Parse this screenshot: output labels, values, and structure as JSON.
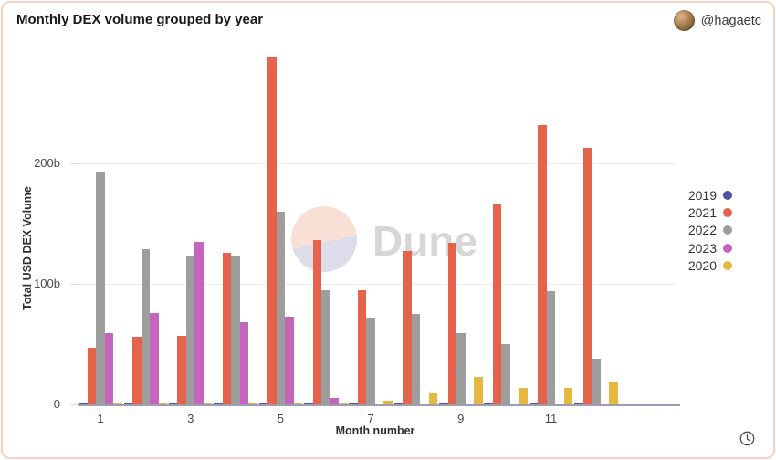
{
  "header": {
    "title": "Monthly DEX volume grouped by year",
    "author_handle": "@hagaetc"
  },
  "watermark": {
    "brand": "Dune"
  },
  "icons": {
    "avatar": "user-avatar",
    "clock": "clock-icon"
  },
  "chart_data": {
    "type": "bar",
    "title": "Monthly DEX volume grouped by year",
    "xlabel": "Month number",
    "ylabel": "Total USD DEX Volume",
    "unit": "billions of USD",
    "grid": true,
    "legend_position": "right",
    "ylim": [
      0,
      300
    ],
    "categories": [
      1,
      2,
      3,
      4,
      5,
      6,
      7,
      8,
      9,
      10,
      11,
      12
    ],
    "x_ticks": [
      1,
      3,
      5,
      7,
      9,
      11
    ],
    "y_ticks": [
      {
        "value": 0,
        "label": "0"
      },
      {
        "value": 100,
        "label": "100b"
      },
      {
        "value": 200,
        "label": "200b"
      }
    ],
    "series": [
      {
        "name": "2019",
        "color": "#4d54a5",
        "values": [
          1,
          1,
          1,
          1,
          1,
          1,
          1,
          1,
          1,
          1,
          1,
          1
        ]
      },
      {
        "name": "2021",
        "color": "#e5634a",
        "values": [
          47,
          56,
          57,
          126,
          288,
          136,
          95,
          127,
          134,
          167,
          232,
          213
        ]
      },
      {
        "name": "2022",
        "color": "#9d9d9d",
        "values": [
          193,
          129,
          123,
          123,
          160,
          95,
          72,
          75,
          59,
          50,
          94,
          38
        ]
      },
      {
        "name": "2023",
        "color": "#c464bd",
        "values": [
          59,
          76,
          135,
          68,
          73,
          5,
          0,
          0,
          0,
          0,
          0,
          0
        ]
      },
      {
        "name": "2020",
        "color": "#e7b83f",
        "values": [
          1,
          1,
          1,
          1,
          1,
          1,
          3,
          9,
          23,
          14,
          14,
          19
        ]
      }
    ]
  }
}
